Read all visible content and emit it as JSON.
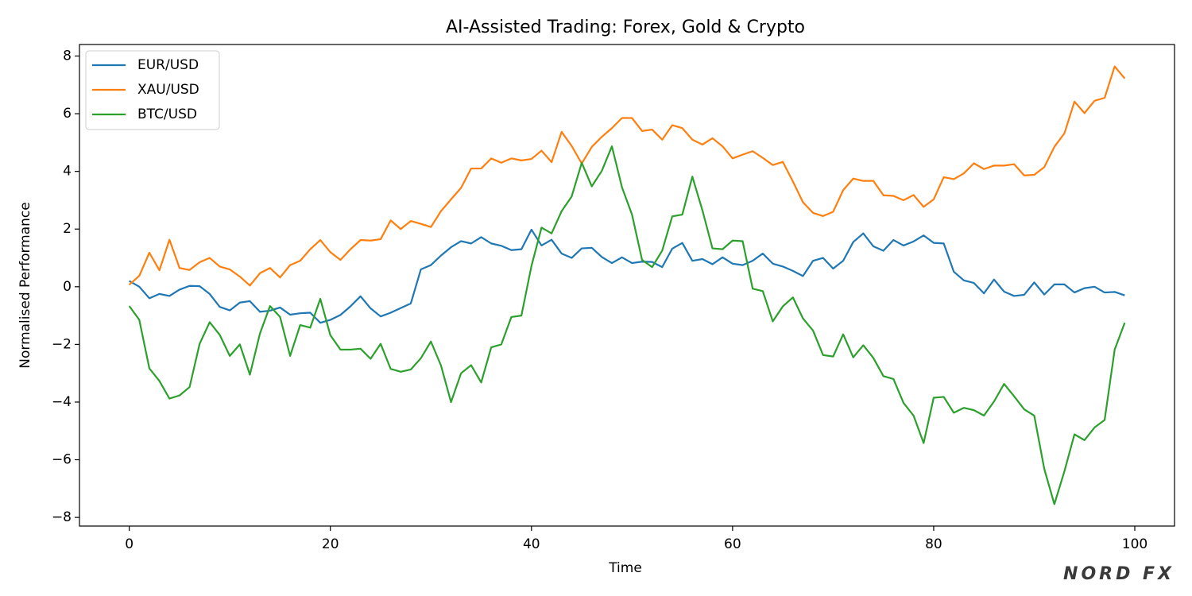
{
  "chart_data": {
    "type": "line",
    "title": "AI-Assisted Trading: Forex, Gold & Crypto",
    "x_label": "Time",
    "y_label": "Normalised Performance",
    "watermark": "NORD FX",
    "legend": "upper left",
    "x": [
      0,
      1,
      2,
      3,
      4,
      5,
      6,
      7,
      8,
      9,
      10,
      11,
      12,
      13,
      14,
      15,
      16,
      17,
      18,
      19,
      20,
      21,
      22,
      23,
      24,
      25,
      26,
      27,
      28,
      29,
      30,
      31,
      32,
      33,
      34,
      35,
      36,
      37,
      38,
      39,
      40,
      41,
      42,
      43,
      44,
      45,
      46,
      47,
      48,
      49,
      50,
      51,
      52,
      53,
      54,
      55,
      56,
      57,
      58,
      59,
      60,
      61,
      62,
      63,
      64,
      65,
      66,
      67,
      68,
      69,
      70,
      71,
      72,
      73,
      74,
      75,
      76,
      77,
      78,
      79,
      80,
      81,
      82,
      83,
      84,
      85,
      86,
      87,
      88,
      89,
      90,
      91,
      92,
      93,
      94,
      95,
      96,
      97,
      98,
      99
    ],
    "series": [
      {
        "name": "EUR/USD",
        "color": "#1f77b4",
        "values": [
          0.2,
          0.0,
          -0.4,
          -0.25,
          -0.32,
          -0.1,
          0.03,
          0.02,
          -0.25,
          -0.7,
          -0.82,
          -0.55,
          -0.5,
          -0.87,
          -0.83,
          -0.72,
          -0.97,
          -0.92,
          -0.9,
          -1.25,
          -1.15,
          -0.98,
          -0.68,
          -0.33,
          -0.75,
          -1.03,
          -0.9,
          -0.74,
          -0.58,
          0.6,
          0.75,
          1.08,
          1.37,
          1.58,
          1.5,
          1.72,
          1.5,
          1.42,
          1.27,
          1.3,
          1.98,
          1.43,
          1.63,
          1.15,
          1.0,
          1.33,
          1.35,
          1.03,
          0.82,
          1.02,
          0.82,
          0.87,
          0.86,
          0.68,
          1.32,
          1.52,
          0.9,
          0.96,
          0.78,
          1.02,
          0.8,
          0.75,
          0.9,
          1.15,
          0.8,
          0.7,
          0.55,
          0.37,
          0.9,
          1.0,
          0.63,
          0.9,
          1.55,
          1.85,
          1.4,
          1.25,
          1.62,
          1.43,
          1.57,
          1.78,
          1.52,
          1.5,
          0.52,
          0.22,
          0.13,
          -0.23,
          0.25,
          -0.17,
          -0.32,
          -0.28,
          0.15,
          -0.27,
          0.08,
          0.08,
          -0.2,
          -0.05,
          0.0,
          -0.2,
          -0.18,
          -0.3
        ]
      },
      {
        "name": "XAU/USD",
        "color": "#ff7f0e",
        "values": [
          0.07,
          0.38,
          1.18,
          0.57,
          1.63,
          0.65,
          0.58,
          0.85,
          1.0,
          0.7,
          0.6,
          0.35,
          0.04,
          0.47,
          0.65,
          0.32,
          0.75,
          0.9,
          1.3,
          1.62,
          1.2,
          0.93,
          1.3,
          1.62,
          1.6,
          1.65,
          2.3,
          2.0,
          2.28,
          2.18,
          2.07,
          2.62,
          3.03,
          3.43,
          4.1,
          4.1,
          4.45,
          4.3,
          4.45,
          4.38,
          4.43,
          4.72,
          4.32,
          5.37,
          4.88,
          4.27,
          4.85,
          5.2,
          5.5,
          5.85,
          5.85,
          5.4,
          5.45,
          5.1,
          5.6,
          5.5,
          5.1,
          4.93,
          5.15,
          4.87,
          4.45,
          4.58,
          4.7,
          4.47,
          4.22,
          4.33,
          3.65,
          2.93,
          2.56,
          2.45,
          2.6,
          3.35,
          3.75,
          3.67,
          3.67,
          3.17,
          3.15,
          3.0,
          3.18,
          2.77,
          3.03,
          3.8,
          3.73,
          3.93,
          4.28,
          4.08,
          4.2,
          4.2,
          4.25,
          3.86,
          3.88,
          4.15,
          4.85,
          5.32,
          6.42,
          6.02,
          6.45,
          6.55,
          7.64,
          7.22
        ]
      },
      {
        "name": "BTC/USD",
        "color": "#2ca02c",
        "values": [
          -0.67,
          -1.15,
          -2.83,
          -3.27,
          -3.88,
          -3.77,
          -3.48,
          -1.98,
          -1.23,
          -1.67,
          -2.4,
          -2.0,
          -3.05,
          -1.62,
          -0.67,
          -1.05,
          -2.4,
          -1.33,
          -1.42,
          -0.42,
          -1.68,
          -2.18,
          -2.18,
          -2.15,
          -2.5,
          -1.98,
          -2.85,
          -2.95,
          -2.87,
          -2.48,
          -1.9,
          -2.73,
          -4.0,
          -3.0,
          -2.72,
          -3.32,
          -2.1,
          -2.0,
          -1.05,
          -1.0,
          0.72,
          2.05,
          1.85,
          2.62,
          3.13,
          4.3,
          3.48,
          4.02,
          4.87,
          3.45,
          2.5,
          0.93,
          0.68,
          1.25,
          2.44,
          2.5,
          3.82,
          2.65,
          1.33,
          1.3,
          1.6,
          1.58,
          -0.07,
          -0.15,
          -1.2,
          -0.68,
          -0.37,
          -1.1,
          -1.52,
          -2.37,
          -2.42,
          -1.65,
          -2.45,
          -2.03,
          -2.47,
          -3.1,
          -3.2,
          -4.03,
          -4.47,
          -5.42,
          -3.85,
          -3.82,
          -4.37,
          -4.2,
          -4.28,
          -4.47,
          -3.98,
          -3.37,
          -3.8,
          -4.25,
          -4.47,
          -6.32,
          -7.54,
          -6.4,
          -5.12,
          -5.32,
          -4.88,
          -4.62,
          -2.18,
          -1.25
        ]
      }
    ],
    "xlim": [
      -4.95,
      103.95
    ],
    "ylim": [
      -8.3,
      8.4
    ],
    "xticks": [
      0,
      20,
      40,
      60,
      80,
      100
    ],
    "yticks": [
      {
        "value": -8,
        "label": "−8"
      },
      {
        "value": -6,
        "label": "−6"
      },
      {
        "value": -4,
        "label": "−4"
      },
      {
        "value": -2,
        "label": "−2"
      },
      0,
      2,
      4,
      6,
      8
    ]
  }
}
